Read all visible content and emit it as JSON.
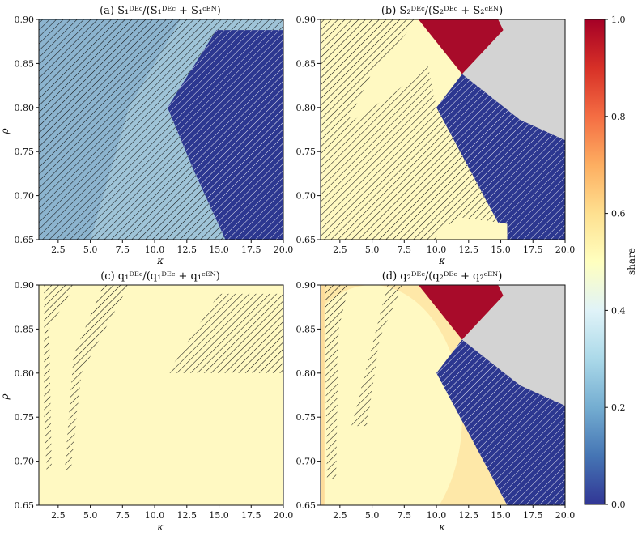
{
  "colors": {
    "dark_blue": "#2c3790",
    "light_blue": "#9fc4d8",
    "mid_blue": "#8cb4cf",
    "pale_yellow": "#fff9c2",
    "light_orange": "#fee8a8",
    "peach": "#fddc9a",
    "dark_red": "#a80b2a",
    "grey": "#d3d3d3",
    "hatch": "#111111",
    "hatch_light": "#ffffff"
  },
  "chart_data": [
    {
      "type": "heatmap",
      "panel": "a",
      "title_prefix": "(a) ",
      "title_formula": "S₁ᴰᴱᶜ/(S₁ᴰᴱᶜ + S₁ᶜᴱᴺ)",
      "xlabel": "κ",
      "ylabel": "ρ",
      "xlim": [
        1,
        20
      ],
      "ylim": [
        0.65,
        0.9
      ],
      "xticks": [
        "2.5",
        "5.0",
        "7.5",
        "10.0",
        "12.5",
        "15.0",
        "17.5",
        "20.0"
      ],
      "yticks": [
        "0.65",
        "0.70",
        "0.75",
        "0.80",
        "0.85",
        "0.90"
      ],
      "regions": [
        {
          "label": "left region",
          "value": 0.28,
          "hatched": true
        },
        {
          "label": "right region",
          "value": 0.0,
          "hatched": true
        }
      ]
    },
    {
      "type": "heatmap",
      "panel": "b",
      "title_prefix": "(b) ",
      "title_formula": "S₂ᴰᴱᶜ/(S₂ᴰᴱᶜ + S₂ᶜᴱᴺ)",
      "xlabel": "κ",
      "ylabel": "",
      "xlim": [
        1,
        20
      ],
      "ylim": [
        0.65,
        0.9
      ],
      "xticks": [
        "2.5",
        "5.0",
        "7.5",
        "10.0",
        "12.5",
        "15.0",
        "17.5",
        "20.0"
      ],
      "yticks": [
        "0.65",
        "0.70",
        "0.75",
        "0.80",
        "0.85",
        "0.90"
      ],
      "regions": [
        {
          "label": "top middle",
          "value": 1.0,
          "hatched": false
        },
        {
          "label": "top right",
          "value": null,
          "hatched": false
        },
        {
          "label": "right",
          "value": 0.0,
          "hatched": true
        },
        {
          "label": "middle",
          "value": 0.5,
          "hatched": true
        },
        {
          "label": "upper left",
          "value": 0.5,
          "hatched": false
        }
      ]
    },
    {
      "type": "heatmap",
      "panel": "c",
      "title_prefix": "(c) ",
      "title_formula": "q₁ᴰᴱᶜ/(q₁ᴰᴱᶜ + q₁ᶜᴱᴺ)",
      "xlabel": "κ",
      "ylabel": "ρ",
      "xlim": [
        1,
        20
      ],
      "ylim": [
        0.65,
        0.9
      ],
      "xticks": [
        "2.5",
        "5.0",
        "7.5",
        "10.0",
        "12.5",
        "15.0",
        "17.5",
        "20.0"
      ],
      "yticks": [
        "0.65",
        "0.70",
        "0.75",
        "0.80",
        "0.85",
        "0.90"
      ],
      "regions": [
        {
          "label": "background",
          "value": 0.5,
          "hatched": false
        },
        {
          "label": "upper right band",
          "value": 0.5,
          "hatched": true
        }
      ]
    },
    {
      "type": "heatmap",
      "panel": "d",
      "title_prefix": "(d) ",
      "title_formula": "q₂ᴰᴱᶜ/(q₂ᴰᴱᶜ + q₂ᶜᴱᴺ)",
      "xlabel": "κ",
      "ylabel": "",
      "xlim": [
        1,
        20
      ],
      "ylim": [
        0.65,
        0.9
      ],
      "xticks": [
        "2.5",
        "5.0",
        "7.5",
        "10.0",
        "12.5",
        "15.0",
        "17.5",
        "20.0"
      ],
      "yticks": [
        "0.65",
        "0.70",
        "0.75",
        "0.80",
        "0.85",
        "0.90"
      ],
      "regions": [
        {
          "label": "top middle",
          "value": 1.0,
          "hatched": false
        },
        {
          "label": "top right",
          "value": null,
          "hatched": false
        },
        {
          "label": "right",
          "value": 0.0,
          "hatched": true
        },
        {
          "label": "left",
          "value": 0.55,
          "hatched": false
        }
      ]
    }
  ],
  "colorbar": {
    "label": "share",
    "ticks": [
      "0.0",
      "0.2",
      "0.4",
      "0.6",
      "0.8",
      "1.0"
    ],
    "range": [
      0,
      1
    ],
    "colormap": "RdYlBu_r",
    "stops": [
      "#313695",
      "#4575b4",
      "#74add1",
      "#abd9e9",
      "#e0f3f8",
      "#ffffbf",
      "#fee090",
      "#fdae61",
      "#f46d43",
      "#d73027",
      "#a50026"
    ]
  }
}
